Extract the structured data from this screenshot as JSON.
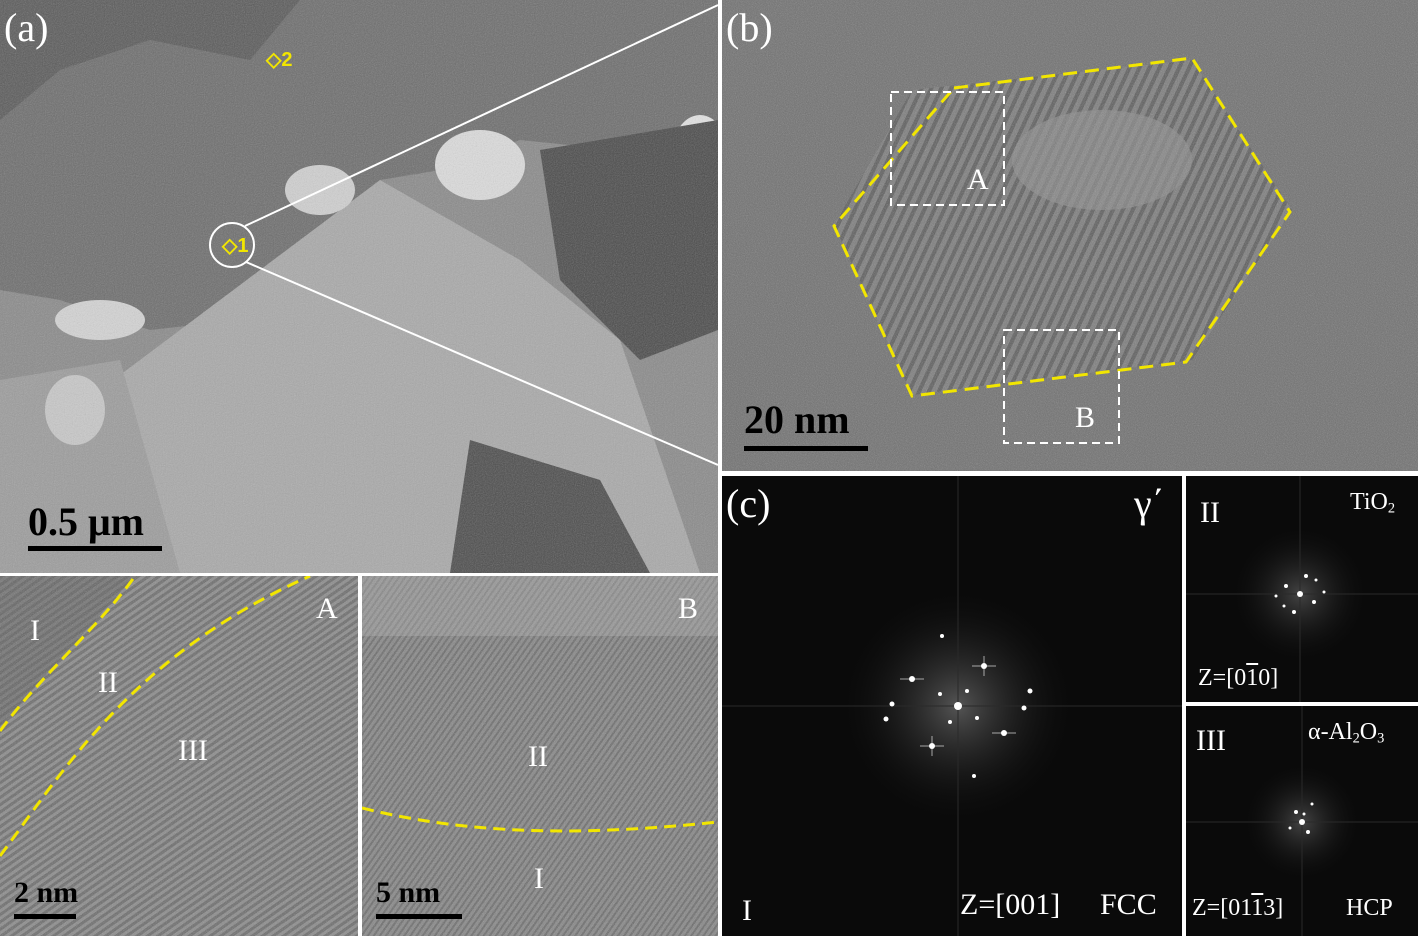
{
  "panels": {
    "a": {
      "label": "(a)",
      "scale": "0.5 μm",
      "points": [
        "◇2",
        "◇1"
      ]
    },
    "b": {
      "label": "(b)",
      "scale": "20 nm",
      "boxes": [
        "A",
        "B"
      ]
    },
    "hrtem_A": {
      "label": "A",
      "regions": [
        "I",
        "II",
        "III"
      ],
      "scale": "2 nm"
    },
    "hrtem_B": {
      "label": "B",
      "regions": [
        "II",
        "I"
      ],
      "scale": "5 nm"
    },
    "c": {
      "label": "(c)",
      "phase": "γ΄",
      "region": "I",
      "zone": "Z=[001]",
      "structure": "FCC"
    },
    "c2": {
      "region": "II",
      "phase_main": "TiO",
      "phase_sub": "2",
      "zone_prefix": "Z=[0",
      "zone_bar": "1",
      "zone_suffix": "0]"
    },
    "c3": {
      "region": "III",
      "phase_pre": "α-Al",
      "phase_sub1": "2",
      "phase_mid": "O",
      "phase_sub2": "3",
      "zone_prefix": "Z=[01",
      "zone_bar": "1",
      "zone_suffix": "3]",
      "structure": "HCP"
    }
  },
  "colors": {
    "frame": "#ffffff",
    "dashed_yellow": "#f2e600",
    "dashed_white": "#ffffff",
    "fft_background": "#0a0a0a"
  }
}
